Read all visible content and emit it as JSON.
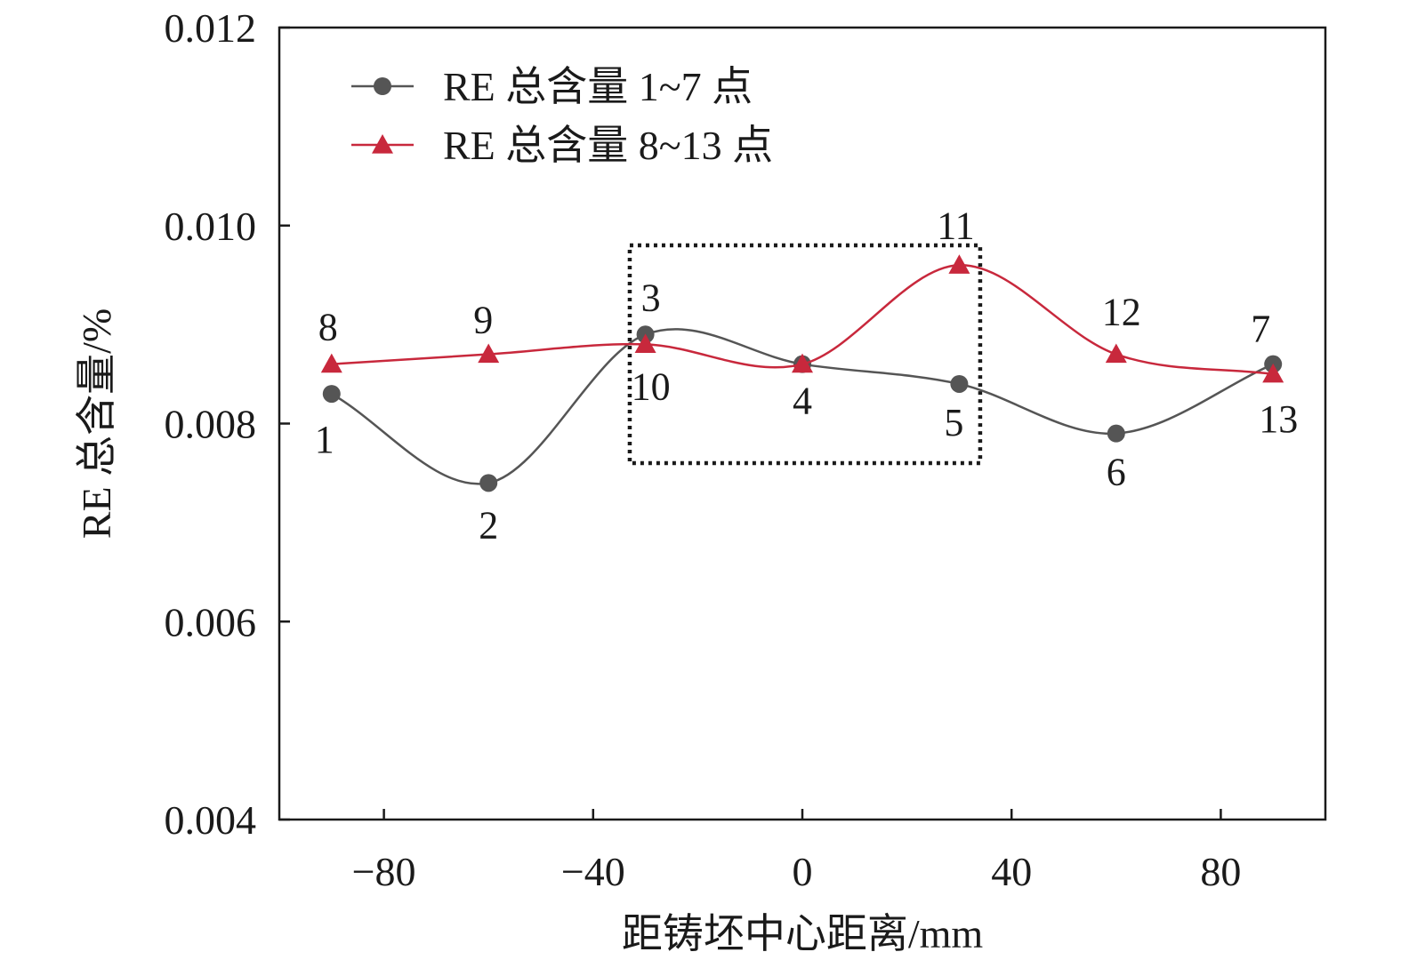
{
  "chart_data": {
    "type": "line",
    "title": "",
    "xlabel": "距铸坯中心距离/mm",
    "ylabel": "RE 总含量/%",
    "xlim": [
      -100,
      100
    ],
    "ylim": [
      0.004,
      0.012
    ],
    "xticks": [
      -80,
      -40,
      0,
      40,
      80
    ],
    "xtick_labels": [
      "−80",
      "−40",
      "0",
      "40",
      "80"
    ],
    "yticks": [
      0.004,
      0.006,
      0.008,
      0.01,
      0.012
    ],
    "ytick_labels": [
      "0.004",
      "0.006",
      "0.008",
      "0.010",
      "0.012"
    ],
    "grid": false,
    "legend_position": "top-left",
    "series": [
      {
        "name": "RE 总含量 1~7 点",
        "color": "#555555",
        "marker": "circle",
        "x": [
          -90,
          -60,
          -30,
          0,
          30,
          60,
          90
        ],
        "y": [
          0.0083,
          0.0074,
          0.0089,
          0.0086,
          0.0084,
          0.0079,
          0.0086
        ],
        "point_labels": [
          "1",
          "2",
          "3",
          "4",
          "5",
          "6",
          "7"
        ]
      },
      {
        "name": "RE 总含量 8~13 点",
        "color": "#c8283c",
        "marker": "triangle",
        "x": [
          -90,
          -60,
          -30,
          0,
          30,
          60,
          90
        ],
        "y": [
          0.0086,
          0.0087,
          0.0088,
          0.0086,
          0.0096,
          0.0087,
          0.0085
        ],
        "point_labels": [
          "8",
          "9",
          "10",
          "",
          "11",
          "12",
          "13"
        ]
      }
    ],
    "annotations": [
      {
        "type": "dotted-box",
        "x": [
          -33,
          34
        ],
        "y": [
          0.0076,
          0.0098
        ]
      }
    ]
  }
}
